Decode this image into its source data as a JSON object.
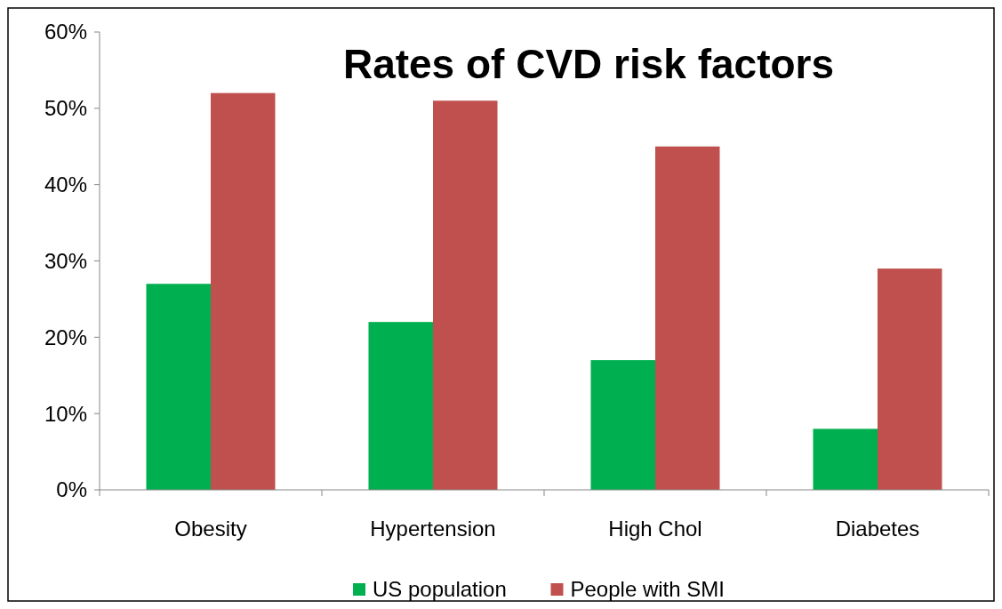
{
  "chart_data": {
    "type": "bar",
    "title": "Rates of CVD risk factors",
    "categories": [
      "Obesity",
      "Hypertension",
      "High Chol",
      "Diabetes"
    ],
    "series": [
      {
        "name": "US population",
        "color": "#00b050",
        "values": [
          27,
          22,
          17,
          8
        ]
      },
      {
        "name": "People with SMI",
        "color": "#c0504d",
        "values": [
          52,
          51,
          45,
          29
        ]
      }
    ],
    "ylim": [
      0,
      60
    ],
    "yticks": [
      {
        "value": 0,
        "label": "0%"
      },
      {
        "value": 10,
        "label": "10%"
      },
      {
        "value": 20,
        "label": "20%"
      },
      {
        "value": 30,
        "label": "30%"
      },
      {
        "value": 40,
        "label": "40%"
      },
      {
        "value": 50,
        "label": "50%"
      },
      {
        "value": 60,
        "label": "60%"
      }
    ],
    "grid": false,
    "legend": "bottom"
  }
}
